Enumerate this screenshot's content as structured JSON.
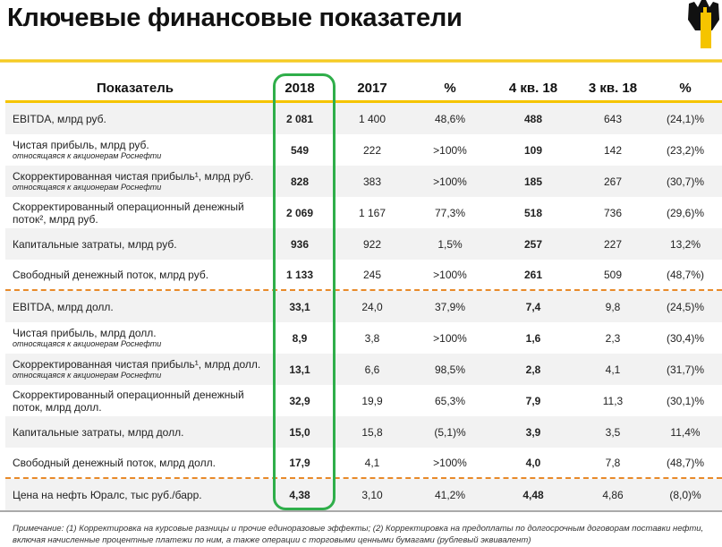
{
  "title": "Ключевые финансовые показатели",
  "colors": {
    "accent": "#f5c400",
    "highlight": "#2fae4a",
    "separator": "#e88a2a"
  },
  "header": [
    "Показатель",
    "2018",
    "2017",
    "%",
    "4 кв. 18",
    "3 кв. 18",
    "%"
  ],
  "rows": [
    {
      "label": "EBITDA, млрд руб.",
      "sub": "",
      "v": [
        "2 081",
        "1 400",
        "48,6%",
        "488",
        "643",
        "(24,1)%"
      ]
    },
    {
      "label": "Чистая прибыль, млрд руб.",
      "sub": "относящаяся к акционерам Роснефти",
      "v": [
        "549",
        "222",
        ">100%",
        "109",
        "142",
        "(23,2)%"
      ]
    },
    {
      "label": "Скорректированная чистая прибыль¹, млрд руб.",
      "sub": "относящаяся к акционерам Роснефти",
      "v": [
        "828",
        "383",
        ">100%",
        "185",
        "267",
        "(30,7)%"
      ]
    },
    {
      "label": "Скорректированный операционный денежный поток², млрд руб.",
      "sub": "",
      "v": [
        "2 069",
        "1 167",
        "77,3%",
        "518",
        "736",
        "(29,6)%"
      ]
    },
    {
      "label": "Капитальные затраты, млрд руб.",
      "sub": "",
      "v": [
        "936",
        "922",
        "1,5%",
        "257",
        "227",
        "13,2%"
      ]
    },
    {
      "label": "Свободный денежный поток, млрд руб.",
      "sub": "",
      "v": [
        "1 133",
        "245",
        ">100%",
        "261",
        "509",
        "(48,7%)"
      ]
    },
    {
      "label": "EBITDA, млрд долл.",
      "sub": "",
      "v": [
        "33,1",
        "24,0",
        "37,9%",
        "7,4",
        "9,8",
        "(24,5)%"
      ]
    },
    {
      "label": "Чистая прибыль, млрд долл.",
      "sub": "относящаяся к акционерам Роснефти",
      "v": [
        "8,9",
        "3,8",
        ">100%",
        "1,6",
        "2,3",
        "(30,4)%"
      ]
    },
    {
      "label": "Скорректированная чистая прибыль¹, млрд долл.",
      "sub": "относящаяся к акционерам Роснефти",
      "v": [
        "13,1",
        "6,6",
        "98,5%",
        "2,8",
        "4,1",
        "(31,7)%"
      ]
    },
    {
      "label": "Скорректированный операционный денежный поток, млрд долл.",
      "sub": "",
      "v": [
        "32,9",
        "19,9",
        "65,3%",
        "7,9",
        "11,3",
        "(30,1)%"
      ]
    },
    {
      "label": "Капитальные затраты, млрд долл.",
      "sub": "",
      "v": [
        "15,0",
        "15,8",
        "(5,1)%",
        "3,9",
        "3,5",
        "11,4%"
      ]
    },
    {
      "label": "Свободный денежный поток, млрд долл.",
      "sub": "",
      "v": [
        "17,9",
        "4,1",
        ">100%",
        "4,0",
        "7,8",
        "(48,7)%"
      ]
    },
    {
      "label": "Цена на нефть Юралс, тыс руб./барр.",
      "sub": "",
      "v": [
        "4,38",
        "3,10",
        "41,2%",
        "4,48",
        "4,86",
        "(8,0)%"
      ]
    }
  ],
  "note": "Примечание: (1) Корректировка на курсовые разницы и прочие единоразовые эффекты; (2) Корректировка на предоплаты по долгосрочным договорам поставки нефти, включая начисленные процентные платежи по ним, а также операции с торговыми ценными бумагами (рублевый эквивалент)"
}
